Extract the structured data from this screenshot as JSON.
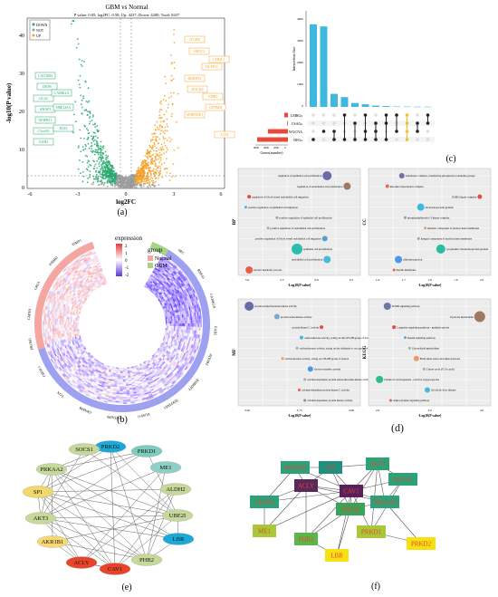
{
  "panel_labels": [
    "(a)",
    "(b)",
    "(c)",
    "(d)",
    "(e)",
    "(f)"
  ],
  "volcano": {
    "title": "GBM vs Normal",
    "subtitle": "P value: 0.05; log2FC: 0.58; Up: 4237; Down: 4200; Total: 8437",
    "legend": [
      "DOWN",
      "NOT",
      "UP"
    ],
    "xlabel": "log2FC",
    "ylabel": "-log10(P value)",
    "xticks": [
      "-6",
      "-3",
      "0",
      "3",
      "6"
    ],
    "yticks": [
      "0",
      "10",
      "20",
      "30",
      "40"
    ],
    "colors": {
      "down": "#27a86f",
      "not": "#9e9e9e",
      "up": "#f4a32a"
    },
    "down_genes": [
      "CACNB4",
      "DEPS",
      "GLS2",
      "ARAP3",
      "NPIPB11",
      "HMG20A",
      "C5orf63",
      "ELF2",
      "GAB2",
      "CAMK2A"
    ],
    "up_genes": [
      "ITGB8",
      "SMOC1",
      "CHI3L1",
      "DUSP11",
      "RHBDF2",
      "DOCK8",
      "VIPR2",
      "GPNMB",
      "SERPINE1",
      "LOX"
    ]
  },
  "heatmap": {
    "legend_title": "expression",
    "scale": [
      "2",
      "1",
      "0",
      "-1",
      "-2"
    ],
    "group_title": "group",
    "groups": [
      {
        "name": "Normal",
        "color": "#f4a6a0"
      },
      {
        "name": "GBM",
        "color": "#a8d48a"
      }
    ],
    "genes": [
      "SRC",
      "RNF43",
      "CAMK2A",
      "GAB2",
      "ATP2B2",
      "RHBDF2",
      "SERPINE1",
      "DUSP11",
      "TNFAIP6",
      "GPNMB",
      "LOX",
      "CHI3L1",
      "PROM1",
      "GMNN",
      "GRIA",
      "ERBB2",
      "TIMP1"
    ]
  },
  "upset": {
    "sets": [
      "LMRGs",
      "CSAGs",
      "WGCNA",
      "DEGs"
    ],
    "bars": [
      3800,
      3700,
      600,
      450,
      180,
      120,
      60,
      40,
      20,
      15,
      10,
      8
    ],
    "set_sizes": [
      1000,
      200,
      5500,
      8437
    ],
    "ylabel": "Intersection Size",
    "xlabel": "Genes(number)",
    "set_axis_ticks": [
      "6000",
      "4000",
      "2000",
      "0"
    ],
    "y_ticks": [
      "0",
      "1000",
      "2000",
      "3000",
      "4000"
    ]
  },
  "enrichment": {
    "BP": {
      "title": "BP",
      "terms": [
        "regulation of epithelial cell proliferation",
        "regulation of endothelial cell proliferation",
        "regulation of blood vessel endothelial cell migration",
        "positive regulation of epithelial cell migration",
        "positive regulation of epithelial cell proliferation",
        "positive regulation of endothelial cell proliferation",
        "positive regulation of blood vessel endothelial cell migration",
        "epithelial cell proliferation",
        "endothelial cell proliferation",
        "alcohol metabolic process"
      ],
      "xlabel": "-Log10(P value)",
      "xticks": [
        "5.0",
        "5.5",
        "6.0",
        "6.5"
      ]
    },
    "CC": {
      "title": "CC",
      "terms": [
        "transferase complex, transferring phosphorus-containing groups",
        "Ras-like transcription complex",
        "SUMO ligase complex",
        "ribonucleoprotein granule",
        "phosphatidylinositol 3-kinase complex",
        "intrinsic component of nuclear inner membrane",
        "integral component of nuclear inner membrane",
        "cytoplasmic ribonucleoprotein granule",
        "adherens junction",
        "myelin membrane"
      ],
      "xlabel": "-Log10(P value)",
      "xticks": [
        "1.6",
        "1.7",
        "1.8",
        "1.9",
        "2.0"
      ]
    },
    "MF": {
      "title": "MF",
      "terms": [
        "protein serine/threonine kinase activity",
        "protein serine kinase activity",
        "protein kinase C activity",
        "oxidoreductase activity, acting on the CH-OH group of donors, NAD or NADP as acceptor",
        "oxidoreductase activity, acting on the aldehyde or oxo group of donors, NAD or NADP as acceptor",
        "oxidoreductase activity, acting on CH-OH group of donors",
        "electron transfer activity",
        "calcium-dependent protein serine/threonine kinase activity",
        "calcium-dependent protein kinase C activity",
        "calcium-dependent protein kinase activity"
      ],
      "xlabel": "-Log10(P value)",
      "xticks": [
        "3.50",
        "3.75",
        "4.00"
      ]
    },
    "KEGG": {
      "title": "KEGG",
      "terms": [
        "mTOR signaling pathway",
        "Pyruvate metabolism",
        "Longevity regulating pathway - multiple species",
        "Insulin signaling pathway",
        "Glycerolipid metabolism",
        "Fluid shear stress and atherosclerosis",
        "Citrate cycle (TCA cycle)",
        "Chemical carcinogenesis - reactive oxygen species",
        "Alcoholic liver disease",
        "Adipocytokine signaling pathway"
      ],
      "xlabel": "-Log10(P value)",
      "xticks": [
        "2.0",
        "3.0",
        "4.0"
      ]
    }
  },
  "network_e": {
    "nodes": [
      {
        "id": "PRKD2",
        "color": "#1ba9d9",
        "text": "#111"
      },
      {
        "id": "SOCS1",
        "color": "#c6d89a",
        "text": "#111"
      },
      {
        "id": "PRKD1",
        "color": "#7fcbbd",
        "text": "#111"
      },
      {
        "id": "ME1",
        "color": "#8fd0c6",
        "text": "#111"
      },
      {
        "id": "PRKAA2",
        "color": "#c6d89a",
        "text": "#111"
      },
      {
        "id": "ALDH2",
        "color": "#c6d89a",
        "text": "#111"
      },
      {
        "id": "SP1",
        "color": "#f0d96a",
        "text": "#111"
      },
      {
        "id": "UBE2I",
        "color": "#c6d89a",
        "text": "#111"
      },
      {
        "id": "AKT3",
        "color": "#c6d89a",
        "text": "#111"
      },
      {
        "id": "LBR",
        "color": "#1ba9d9",
        "text": "#111"
      },
      {
        "id": "AKR1B1",
        "color": "#f7d872",
        "text": "#111"
      },
      {
        "id": "PHB2",
        "color": "#c6d89a",
        "text": "#111"
      },
      {
        "id": "ACLY",
        "color": "#e8442a",
        "text": "#111"
      },
      {
        "id": "CAV1",
        "color": "#e8442a",
        "text": "#111"
      }
    ]
  },
  "network_f": {
    "nodes": [
      {
        "id": "SP1",
        "color": "#1f8f7f",
        "text": "#e8442a"
      },
      {
        "id": "AKT3",
        "color": "#2aa37a",
        "text": "#e8442a"
      },
      {
        "id": "SOCS1",
        "color": "#2aa37a",
        "text": "#e8442a"
      },
      {
        "id": "ACLY",
        "color": "#5a2a5a",
        "text": "#e8442a"
      },
      {
        "id": "CAV1",
        "color": "#5a1f5a",
        "text": "#e8442a"
      },
      {
        "id": "UBE2I",
        "color": "#3aa35a",
        "text": "#e8442a"
      },
      {
        "id": "PRKAA2",
        "color": "#2aa37a",
        "text": "#e8442a"
      },
      {
        "id": "ALDH2",
        "color": "#2aa37a",
        "text": "#e8442a"
      },
      {
        "id": "ME1",
        "color": "#a8c83a",
        "text": "#e8442a"
      },
      {
        "id": "PHB2",
        "color": "#5ab84a",
        "text": "#e8442a"
      },
      {
        "id": "PRKD1",
        "color": "#a8c83a",
        "text": "#e8442a"
      },
      {
        "id": "PRKD2",
        "color": "#f6e012",
        "text": "#e8442a"
      },
      {
        "id": "LBR",
        "color": "#f6e012",
        "text": "#e8442a"
      },
      {
        "id": "AKR1B1",
        "color": "#2aa37a",
        "text": "#e8442a"
      }
    ]
  }
}
